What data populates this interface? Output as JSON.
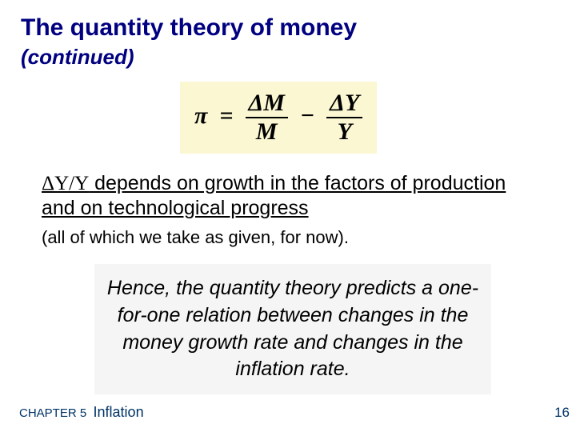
{
  "title": "The quantity theory of money",
  "subtitle": "(continued)",
  "equation": {
    "pi": "π",
    "eq": "=",
    "num1": "ΔM",
    "den1": "M",
    "minus": "−",
    "num2": "ΔY",
    "den2": "Y",
    "box_bg": "#faf7d2"
  },
  "body1_lead": "ΔY/Y",
  "body1_rest": " depends on growth in the factors of production and on technological progress",
  "body2": "(all of which we take as given, for now).",
  "callout": "Hence, the quantity theory predicts a one-for-one relation between changes in the money growth rate and changes in the inflation rate.",
  "chapter_label": "CHAPTER 5",
  "chapter_title": "Inflation",
  "page_number": "16",
  "colors": {
    "title": "#000080",
    "footer": "#003366",
    "callout_bg": "#f5f5f5",
    "page_bg": "#ffffff"
  }
}
